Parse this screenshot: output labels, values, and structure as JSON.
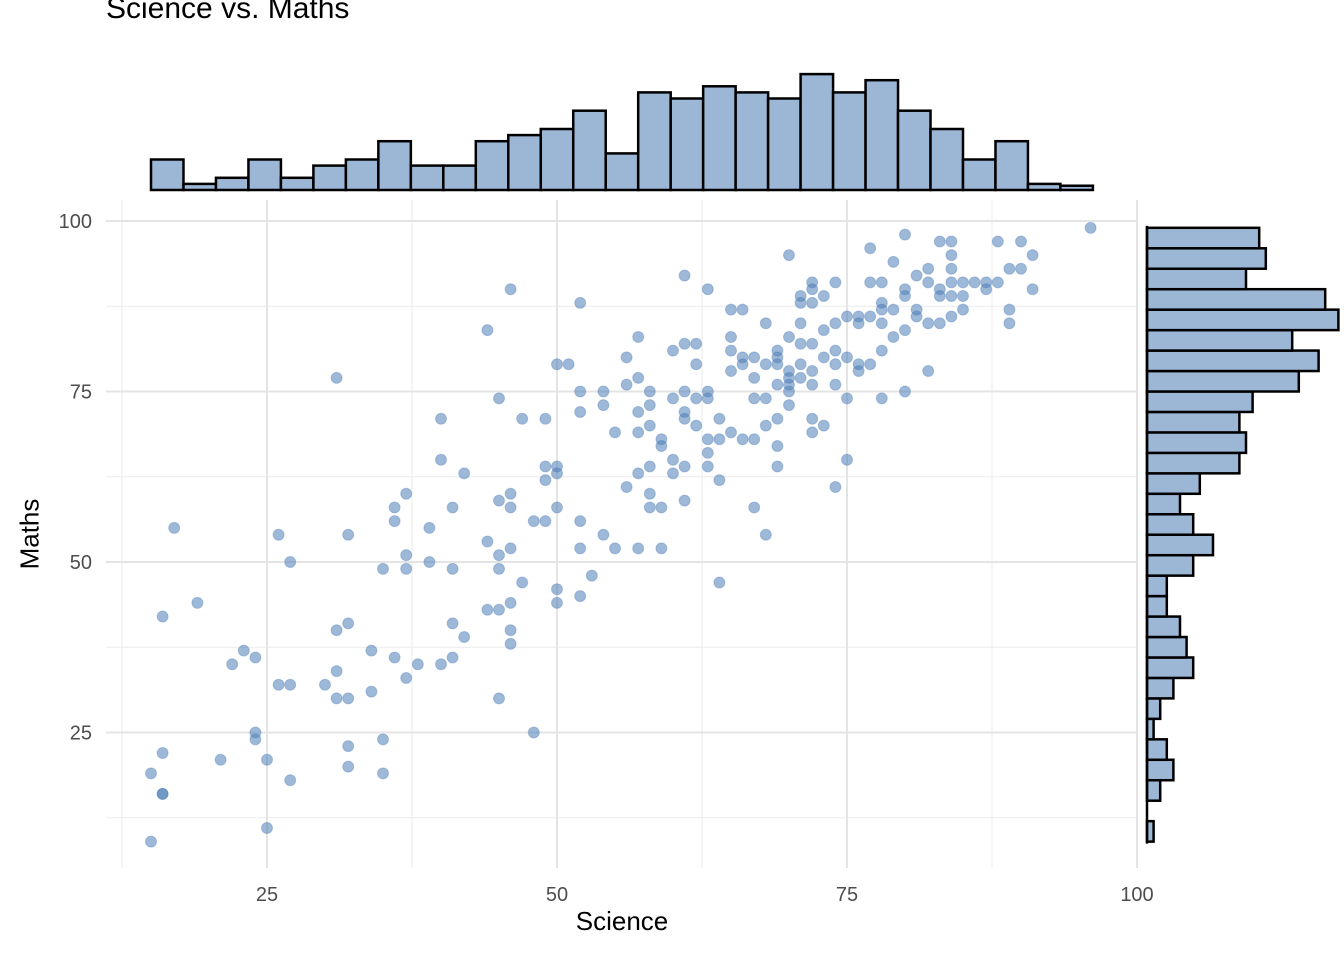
{
  "chart_data": {
    "type": "scatter",
    "title": "Science vs. Maths",
    "xlabel": "Science",
    "ylabel": "Maths",
    "xlim": [
      12.5,
      100
    ],
    "ylim": [
      7.5,
      100
    ],
    "x_ticks": [
      25,
      50,
      75,
      100
    ],
    "y_ticks": [
      25,
      50,
      75,
      100
    ],
    "grid": true,
    "point_color": "#4E7DB8",
    "hist_fill": "#9CB6D6",
    "hist_stroke": "#000000",
    "points": [
      [
        15,
        9
      ],
      [
        15,
        19
      ],
      [
        16,
        16
      ],
      [
        16,
        16
      ],
      [
        16,
        22
      ],
      [
        16,
        42
      ],
      [
        17,
        55
      ],
      [
        19,
        44
      ],
      [
        21,
        21
      ],
      [
        22,
        35
      ],
      [
        23,
        37
      ],
      [
        24,
        36
      ],
      [
        24,
        25
      ],
      [
        24,
        24
      ],
      [
        25,
        21
      ],
      [
        25,
        11
      ],
      [
        26,
        54
      ],
      [
        26,
        32
      ],
      [
        27,
        32
      ],
      [
        27,
        18
      ],
      [
        27,
        50
      ],
      [
        30,
        32
      ],
      [
        31,
        77
      ],
      [
        31,
        40
      ],
      [
        31,
        34
      ],
      [
        31,
        30
      ],
      [
        32,
        41
      ],
      [
        32,
        30
      ],
      [
        32,
        54
      ],
      [
        32,
        23
      ],
      [
        32,
        20
      ],
      [
        34,
        37
      ],
      [
        34,
        31
      ],
      [
        35,
        49
      ],
      [
        35,
        24
      ],
      [
        35,
        19
      ],
      [
        36,
        58
      ],
      [
        36,
        56
      ],
      [
        36,
        36
      ],
      [
        37,
        60
      ],
      [
        37,
        51
      ],
      [
        37,
        49
      ],
      [
        37,
        33
      ],
      [
        38,
        35
      ],
      [
        39,
        55
      ],
      [
        39,
        50
      ],
      [
        40,
        71
      ],
      [
        40,
        65
      ],
      [
        40,
        35
      ],
      [
        41,
        58
      ],
      [
        41,
        49
      ],
      [
        41,
        41
      ],
      [
        41,
        36
      ],
      [
        42,
        63
      ],
      [
        42,
        39
      ],
      [
        44,
        84
      ],
      [
        44,
        53
      ],
      [
        44,
        43
      ],
      [
        45,
        74
      ],
      [
        45,
        59
      ],
      [
        45,
        51
      ],
      [
        45,
        49
      ],
      [
        45,
        43
      ],
      [
        45,
        30
      ],
      [
        46,
        90
      ],
      [
        46,
        60
      ],
      [
        46,
        58
      ],
      [
        46,
        52
      ],
      [
        46,
        44
      ],
      [
        46,
        40
      ],
      [
        46,
        38
      ],
      [
        47,
        71
      ],
      [
        47,
        47
      ],
      [
        48,
        56
      ],
      [
        48,
        25
      ],
      [
        49,
        71
      ],
      [
        49,
        64
      ],
      [
        49,
        62
      ],
      [
        49,
        56
      ],
      [
        50,
        79
      ],
      [
        50,
        64
      ],
      [
        50,
        63
      ],
      [
        50,
        58
      ],
      [
        50,
        46
      ],
      [
        50,
        44
      ],
      [
        51,
        79
      ],
      [
        52,
        88
      ],
      [
        52,
        75
      ],
      [
        52,
        72
      ],
      [
        52,
        56
      ],
      [
        52,
        52
      ],
      [
        52,
        45
      ],
      [
        53,
        48
      ],
      [
        54,
        75
      ],
      [
        54,
        73
      ],
      [
        54,
        54
      ],
      [
        55,
        69
      ],
      [
        55,
        52
      ],
      [
        56,
        80
      ],
      [
        56,
        76
      ],
      [
        56,
        61
      ],
      [
        57,
        83
      ],
      [
        57,
        77
      ],
      [
        57,
        72
      ],
      [
        57,
        69
      ],
      [
        57,
        63
      ],
      [
        57,
        52
      ],
      [
        58,
        75
      ],
      [
        58,
        73
      ],
      [
        58,
        70
      ],
      [
        58,
        64
      ],
      [
        58,
        60
      ],
      [
        58,
        58
      ],
      [
        59,
        68
      ],
      [
        59,
        67
      ],
      [
        59,
        58
      ],
      [
        59,
        52
      ],
      [
        60,
        81
      ],
      [
        60,
        74
      ],
      [
        60,
        65
      ],
      [
        60,
        63
      ],
      [
        61,
        92
      ],
      [
        61,
        82
      ],
      [
        61,
        75
      ],
      [
        61,
        72
      ],
      [
        61,
        71
      ],
      [
        61,
        64
      ],
      [
        61,
        59
      ],
      [
        62,
        82
      ],
      [
        62,
        79
      ],
      [
        62,
        74
      ],
      [
        62,
        70
      ],
      [
        63,
        90
      ],
      [
        63,
        75
      ],
      [
        63,
        74
      ],
      [
        63,
        68
      ],
      [
        63,
        66
      ],
      [
        63,
        64
      ],
      [
        64,
        71
      ],
      [
        64,
        68
      ],
      [
        64,
        62
      ],
      [
        64,
        47
      ],
      [
        65,
        87
      ],
      [
        65,
        83
      ],
      [
        65,
        81
      ],
      [
        65,
        78
      ],
      [
        65,
        69
      ],
      [
        66,
        87
      ],
      [
        66,
        80
      ],
      [
        66,
        79
      ],
      [
        66,
        68
      ],
      [
        67,
        80
      ],
      [
        67,
        77
      ],
      [
        67,
        74
      ],
      [
        67,
        68
      ],
      [
        67,
        58
      ],
      [
        68,
        85
      ],
      [
        68,
        79
      ],
      [
        68,
        74
      ],
      [
        68,
        70
      ],
      [
        68,
        54
      ],
      [
        69,
        81
      ],
      [
        69,
        80
      ],
      [
        69,
        79
      ],
      [
        69,
        76
      ],
      [
        69,
        71
      ],
      [
        69,
        67
      ],
      [
        69,
        64
      ],
      [
        70,
        95
      ],
      [
        70,
        83
      ],
      [
        70,
        78
      ],
      [
        70,
        77
      ],
      [
        70,
        76
      ],
      [
        70,
        75
      ],
      [
        70,
        73
      ],
      [
        71,
        89
      ],
      [
        71,
        88
      ],
      [
        71,
        85
      ],
      [
        71,
        82
      ],
      [
        71,
        79
      ],
      [
        71,
        77
      ],
      [
        72,
        91
      ],
      [
        72,
        90
      ],
      [
        72,
        88
      ],
      [
        72,
        82
      ],
      [
        72,
        78
      ],
      [
        72,
        76
      ],
      [
        72,
        71
      ],
      [
        72,
        69
      ],
      [
        73,
        89
      ],
      [
        73,
        84
      ],
      [
        73,
        80
      ],
      [
        73,
        70
      ],
      [
        74,
        91
      ],
      [
        74,
        85
      ],
      [
        74,
        81
      ],
      [
        74,
        79
      ],
      [
        74,
        76
      ],
      [
        74,
        61
      ],
      [
        75,
        86
      ],
      [
        75,
        80
      ],
      [
        75,
        74
      ],
      [
        75,
        65
      ],
      [
        76,
        86
      ],
      [
        76,
        85
      ],
      [
        76,
        79
      ],
      [
        76,
        78
      ],
      [
        77,
        96
      ],
      [
        77,
        91
      ],
      [
        77,
        86
      ],
      [
        77,
        79
      ],
      [
        78,
        91
      ],
      [
        78,
        88
      ],
      [
        78,
        87
      ],
      [
        78,
        85
      ],
      [
        78,
        81
      ],
      [
        78,
        74
      ],
      [
        79,
        94
      ],
      [
        79,
        87
      ],
      [
        79,
        83
      ],
      [
        80,
        98
      ],
      [
        80,
        90
      ],
      [
        80,
        89
      ],
      [
        80,
        84
      ],
      [
        80,
        75
      ],
      [
        81,
        92
      ],
      [
        81,
        87
      ],
      [
        81,
        86
      ],
      [
        82,
        93
      ],
      [
        82,
        91
      ],
      [
        82,
        85
      ],
      [
        82,
        78
      ],
      [
        83,
        97
      ],
      [
        83,
        90
      ],
      [
        83,
        89
      ],
      [
        83,
        85
      ],
      [
        84,
        97
      ],
      [
        84,
        95
      ],
      [
        84,
        93
      ],
      [
        84,
        91
      ],
      [
        84,
        89
      ],
      [
        84,
        86
      ],
      [
        85,
        91
      ],
      [
        85,
        89
      ],
      [
        85,
        87
      ],
      [
        86,
        91
      ],
      [
        87,
        91
      ],
      [
        87,
        90
      ],
      [
        88,
        97
      ],
      [
        88,
        91
      ],
      [
        89,
        87
      ],
      [
        89,
        85
      ],
      [
        89,
        93
      ],
      [
        90,
        97
      ],
      [
        90,
        93
      ],
      [
        91,
        95
      ],
      [
        91,
        90
      ],
      [
        96,
        99
      ]
    ],
    "x_histogram": {
      "bins": [
        [
          15.0,
          17.8
        ],
        [
          17.8,
          20.6
        ],
        [
          20.6,
          23.4
        ],
        [
          23.4,
          26.2
        ],
        [
          26.2,
          29.0
        ],
        [
          29.0,
          31.8
        ],
        [
          31.8,
          34.6
        ],
        [
          34.6,
          37.4
        ],
        [
          37.4,
          40.2
        ],
        [
          40.2,
          43.0
        ],
        [
          43.0,
          45.8
        ],
        [
          45.8,
          48.6
        ],
        [
          48.6,
          51.4
        ],
        [
          51.4,
          54.2
        ],
        [
          54.2,
          57.0
        ],
        [
          57.0,
          59.8
        ],
        [
          59.8,
          62.6
        ],
        [
          62.6,
          65.4
        ],
        [
          65.4,
          68.2
        ],
        [
          68.2,
          71.0
        ],
        [
          71.0,
          73.8
        ],
        [
          73.8,
          76.6
        ],
        [
          76.6,
          79.4
        ],
        [
          79.4,
          82.2
        ],
        [
          82.2,
          85.0
        ],
        [
          85.0,
          87.8
        ],
        [
          87.8,
          90.6
        ],
        [
          90.6,
          93.4
        ],
        [
          93.4,
          96.2
        ]
      ],
      "counts": [
        5,
        1,
        2,
        5,
        2,
        4,
        5,
        8,
        4,
        4,
        8,
        9,
        10,
        13,
        6,
        16,
        15,
        17,
        16,
        15,
        19,
        16,
        18,
        13,
        10,
        5,
        8,
        1,
        0.7
      ]
    },
    "y_histogram": {
      "bins": [
        [
          9,
          12
        ],
        [
          12,
          15
        ],
        [
          15,
          18
        ],
        [
          18,
          21
        ],
        [
          21,
          24
        ],
        [
          24,
          27
        ],
        [
          27,
          30
        ],
        [
          30,
          33
        ],
        [
          33,
          36
        ],
        [
          36,
          39
        ],
        [
          39,
          42
        ],
        [
          42,
          45
        ],
        [
          45,
          48
        ],
        [
          48,
          51
        ],
        [
          51,
          54
        ],
        [
          54,
          57
        ],
        [
          57,
          60
        ],
        [
          60,
          63
        ],
        [
          63,
          66
        ],
        [
          66,
          69
        ],
        [
          69,
          72
        ],
        [
          72,
          75
        ],
        [
          75,
          78
        ],
        [
          78,
          81
        ],
        [
          81,
          84
        ],
        [
          84,
          87
        ],
        [
          87,
          90
        ],
        [
          90,
          93
        ],
        [
          93,
          96
        ],
        [
          96,
          99
        ]
      ],
      "counts": [
        1,
        0,
        2,
        4,
        3,
        1,
        2,
        4,
        7,
        6,
        5,
        3,
        3,
        7,
        10,
        7,
        5,
        8,
        14,
        15,
        14,
        16,
        23,
        26,
        22,
        29,
        27,
        15,
        18,
        17
      ]
    }
  }
}
